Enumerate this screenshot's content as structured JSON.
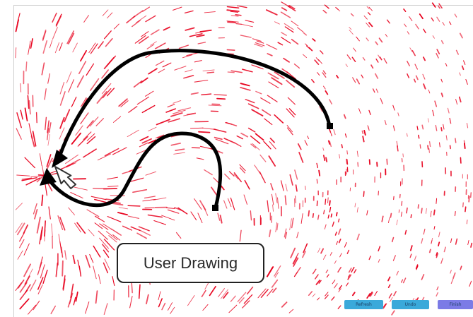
{
  "label": {
    "text": "User Drawing"
  },
  "toolbar": {
    "refresh_label": "Refresh",
    "undo_label": "Undo",
    "finish_label": "Finish"
  },
  "colors": {
    "particle": "#e8001c",
    "stroke": "#000000",
    "button_blue": "#3aa9da",
    "button_purple": "#7b7be6"
  }
}
